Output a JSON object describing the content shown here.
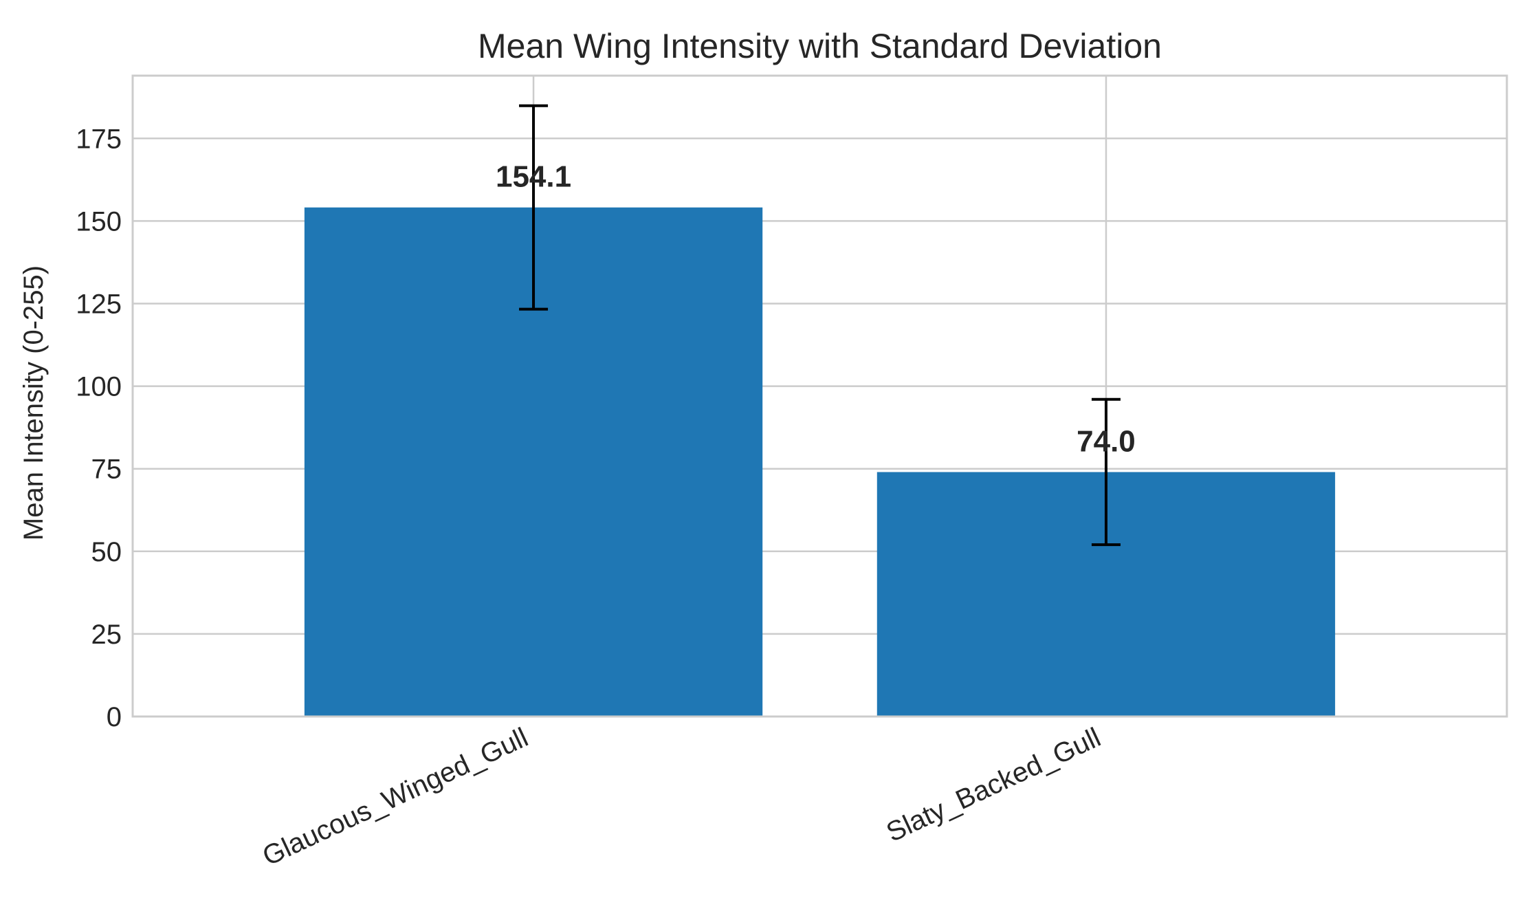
{
  "chart_data": {
    "type": "bar",
    "title": "Mean Wing Intensity with Standard Deviation",
    "xlabel": "",
    "ylabel": "Mean Intensity (0-255)",
    "categories": [
      "Glaucous_Winged_Gull",
      "Slaty_Backed_Gull"
    ],
    "values": [
      154.1,
      74.0
    ],
    "errors": [
      30.8,
      22.0
    ],
    "value_labels": [
      "154.1",
      "74.0"
    ],
    "ylim": [
      0,
      194
    ],
    "yticks": [
      0,
      25,
      50,
      75,
      100,
      125,
      150,
      175
    ],
    "grid": true,
    "legend": "none",
    "bar_color": "#1f77b4",
    "error_color": "#000000"
  }
}
